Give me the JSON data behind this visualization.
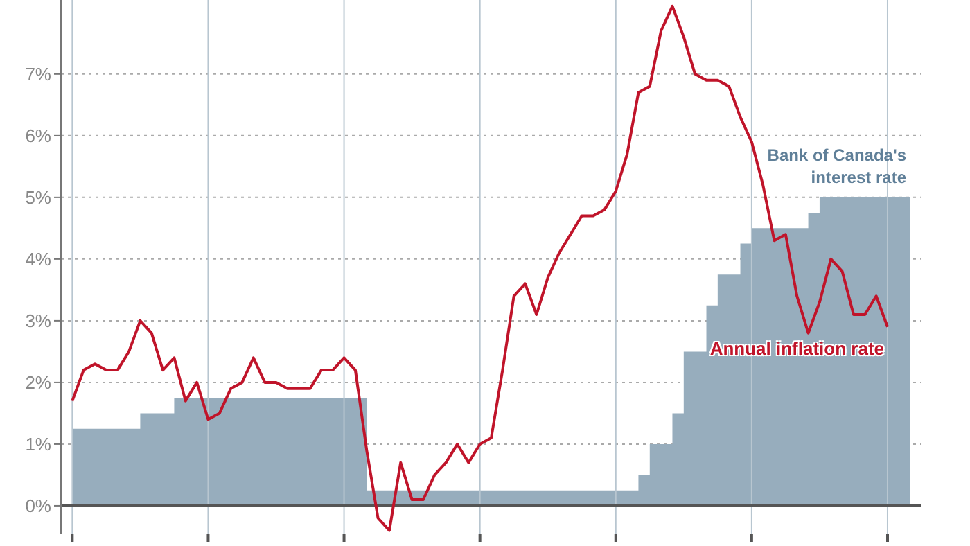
{
  "chart_data": {
    "type": "line",
    "categories": [
      null,
      null,
      null,
      null,
      null,
      null,
      null,
      null,
      null,
      null,
      null,
      null,
      null,
      null,
      null,
      null,
      null,
      null,
      null,
      null,
      null,
      null,
      null,
      null,
      null,
      null,
      null,
      null,
      null,
      null,
      null,
      null,
      null,
      null,
      null,
      null,
      null,
      null,
      null,
      null,
      null,
      null,
      null,
      null,
      null,
      null,
      null,
      null,
      null,
      null,
      null,
      null,
      null,
      null,
      null,
      null,
      null,
      null,
      null,
      null,
      null,
      null,
      null,
      null,
      null,
      null,
      null,
      null,
      null,
      null,
      null,
      null,
      null,
      null,
      null
    ],
    "series": [
      {
        "name": "Bank of Canada's interest rate",
        "type": "area",
        "color": "#97adbd",
        "values": [
          1.25,
          1.25,
          1.25,
          1.25,
          1.25,
          1.25,
          1.5,
          1.5,
          1.5,
          1.75,
          1.75,
          1.75,
          1.75,
          1.75,
          1.75,
          1.75,
          1.75,
          1.75,
          1.75,
          1.75,
          1.75,
          1.75,
          1.75,
          1.75,
          1.75,
          1.75,
          0.25,
          0.25,
          0.25,
          0.25,
          0.25,
          0.25,
          0.25,
          0.25,
          0.25,
          0.25,
          0.25,
          0.25,
          0.25,
          0.25,
          0.25,
          0.25,
          0.25,
          0.25,
          0.25,
          0.25,
          0.25,
          0.25,
          0.25,
          0.25,
          0.5,
          1.0,
          1.0,
          1.5,
          2.5,
          2.5,
          3.25,
          3.75,
          3.75,
          4.25,
          4.5,
          4.5,
          4.5,
          4.5,
          4.5,
          4.75,
          5.0,
          5.0,
          5.0,
          5.0,
          5.0,
          5.0,
          5.0,
          5.0,
          5.0
        ]
      },
      {
        "name": "Annual inflation rate",
        "color": "#c0142a",
        "values": [
          1.7,
          2.2,
          2.3,
          2.2,
          2.2,
          2.5,
          3.0,
          2.8,
          2.2,
          2.4,
          1.7,
          2.0,
          1.4,
          1.5,
          1.9,
          2.0,
          2.4,
          2.0,
          2.0,
          1.9,
          1.9,
          1.9,
          2.2,
          2.2,
          2.4,
          2.2,
          0.9,
          -0.2,
          -0.4,
          0.7,
          0.1,
          0.1,
          0.5,
          0.7,
          1.0,
          0.7,
          1.0,
          1.1,
          2.2,
          3.4,
          3.6,
          3.1,
          3.7,
          4.1,
          4.4,
          4.7,
          4.7,
          4.8,
          5.1,
          5.7,
          6.7,
          6.8,
          7.7,
          8.1,
          7.6,
          7.0,
          6.9,
          6.9,
          6.8,
          6.3,
          5.9,
          5.2,
          4.3,
          4.4,
          3.4,
          2.8,
          3.3,
          4.0,
          3.8,
          3.1,
          3.1,
          3.4,
          2.9,
          null,
          null
        ]
      }
    ],
    "ylim": [
      -0.45,
      8.2
    ],
    "yticks": [
      {
        "value": 0,
        "label": "0%"
      },
      {
        "value": 1,
        "label": "1%"
      },
      {
        "value": 2,
        "label": "2%"
      },
      {
        "value": 3,
        "label": "3%"
      },
      {
        "value": 4,
        "label": "4%"
      },
      {
        "value": 5,
        "label": "5%"
      },
      {
        "value": 6,
        "label": "6%"
      },
      {
        "value": 7,
        "label": "7%"
      }
    ],
    "ref_lines": [
      {
        "axis": "y",
        "value": 0,
        "color": "#555555"
      }
    ],
    "grid": true,
    "tick_labels": "y",
    "legend": false,
    "marker": "none",
    "line_style": "solid"
  }
}
